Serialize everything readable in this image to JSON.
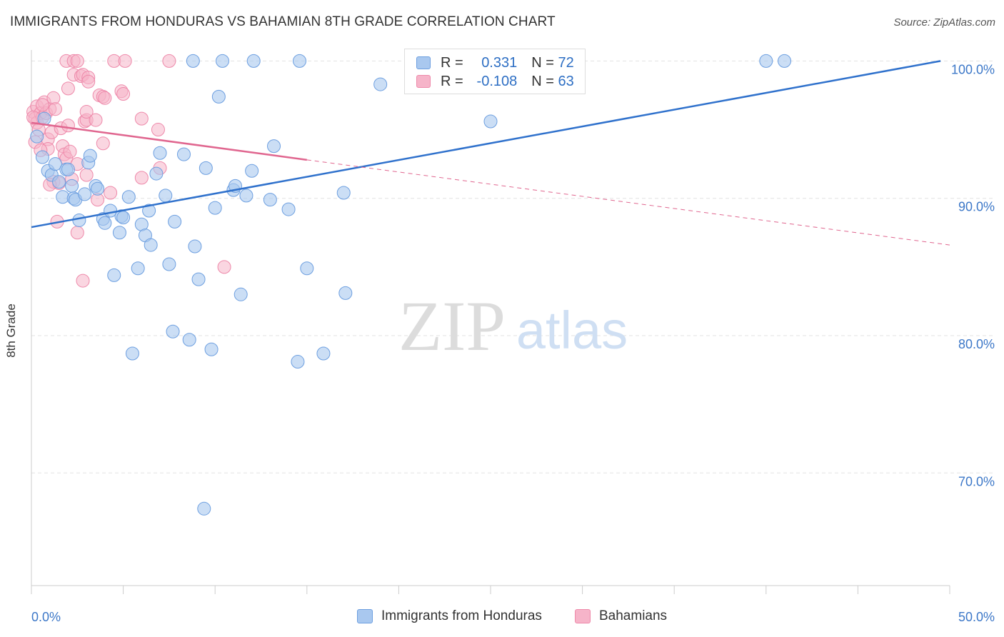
{
  "title": "IMMIGRANTS FROM HONDURAS VS BAHAMIAN 8TH GRADE CORRELATION CHART",
  "source": "Source: ZipAtlas.com",
  "watermark": {
    "zip": "ZIP",
    "atlas": "atlas"
  },
  "legend_top": [
    {
      "r_label": "R = ",
      "r_value": "0.331",
      "n_label": "N = ",
      "n_value": "72"
    },
    {
      "r_label": "R = ",
      "r_value": "-0.108",
      "n_label": "N = ",
      "n_value": "63"
    }
  ],
  "legend_bottom": [
    {
      "label": "Immigrants from Honduras"
    },
    {
      "label": "Bahamians"
    }
  ],
  "colors": {
    "blue_fill": "#a9c8ef",
    "blue_stroke": "#6d9fe0",
    "blue_line": "#2f71cc",
    "pink_fill": "#f6b4c9",
    "pink_stroke": "#ee89aa",
    "pink_line": "#e0668f",
    "tick_label": "#3d78c8",
    "grid": "#e2e2e2"
  },
  "chart_data": {
    "type": "scatter",
    "title": "IMMIGRANTS FROM HONDURAS VS BAHAMIAN 8TH GRADE CORRELATION CHART",
    "xlabel": "",
    "ylabel": "8th Grade",
    "xlim": [
      0,
      50
    ],
    "ylim": [
      61.8,
      100.8
    ],
    "x_tick_labels": [
      "0.0%",
      "50.0%"
    ],
    "y_ticks": [
      70,
      80,
      90,
      100
    ],
    "y_tick_labels": [
      "70.0%",
      "80.0%",
      "90.0%",
      "100.0%"
    ],
    "grid": true,
    "legend": "bottom",
    "series": [
      {
        "name": "Immigrants from Honduras",
        "color": "#a9c8ef",
        "r": 0.331,
        "n": 72,
        "trend": {
          "x": [
            0,
            49.5
          ],
          "y": [
            87.9,
            100.0
          ]
        },
        "points": [
          [
            0.3,
            94.5
          ],
          [
            0.6,
            93.0
          ],
          [
            0.7,
            95.8
          ],
          [
            0.9,
            92.0
          ],
          [
            1.1,
            91.7
          ],
          [
            1.3,
            92.5
          ],
          [
            1.5,
            91.2
          ],
          [
            1.7,
            90.1
          ],
          [
            1.9,
            92.1
          ],
          [
            2.0,
            92.1
          ],
          [
            2.2,
            90.9
          ],
          [
            2.3,
            90.0
          ],
          [
            2.4,
            89.9
          ],
          [
            2.6,
            88.4
          ],
          [
            2.9,
            90.3
          ],
          [
            3.1,
            92.6
          ],
          [
            3.2,
            93.1
          ],
          [
            3.5,
            90.9
          ],
          [
            3.6,
            90.7
          ],
          [
            3.9,
            88.5
          ],
          [
            4.0,
            88.2
          ],
          [
            4.3,
            89.1
          ],
          [
            4.5,
            84.4
          ],
          [
            4.8,
            87.5
          ],
          [
            4.9,
            88.7
          ],
          [
            5.0,
            88.6
          ],
          [
            5.3,
            90.1
          ],
          [
            5.5,
            78.7
          ],
          [
            5.8,
            84.9
          ],
          [
            6.0,
            88.1
          ],
          [
            6.2,
            87.3
          ],
          [
            6.4,
            89.1
          ],
          [
            6.5,
            86.6
          ],
          [
            6.8,
            91.8
          ],
          [
            7.0,
            93.3
          ],
          [
            7.3,
            90.2
          ],
          [
            7.5,
            85.2
          ],
          [
            7.7,
            80.3
          ],
          [
            7.8,
            88.3
          ],
          [
            8.3,
            93.2
          ],
          [
            8.6,
            79.7
          ],
          [
            8.8,
            100.0
          ],
          [
            8.9,
            86.5
          ],
          [
            9.1,
            84.1
          ],
          [
            9.4,
            67.4
          ],
          [
            9.5,
            92.2
          ],
          [
            9.8,
            79.0
          ],
          [
            10.0,
            89.3
          ],
          [
            10.2,
            97.4
          ],
          [
            10.4,
            100.0
          ],
          [
            11.0,
            90.6
          ],
          [
            11.1,
            90.9
          ],
          [
            11.4,
            83.0
          ],
          [
            11.7,
            90.2
          ],
          [
            12.0,
            92.0
          ],
          [
            12.1,
            100.0
          ],
          [
            13.0,
            89.9
          ],
          [
            13.2,
            93.8
          ],
          [
            14.0,
            89.2
          ],
          [
            14.5,
            78.1
          ],
          [
            14.6,
            100.0
          ],
          [
            15.0,
            84.9
          ],
          [
            15.9,
            78.7
          ],
          [
            17.0,
            90.4
          ],
          [
            17.1,
            83.1
          ],
          [
            19.0,
            98.3
          ],
          [
            23.5,
            100.0
          ],
          [
            24.0,
            100.0
          ],
          [
            25.0,
            95.6
          ],
          [
            27.5,
            100.0
          ],
          [
            40.0,
            100.0
          ],
          [
            41.0,
            100.0
          ]
        ]
      },
      {
        "name": "Bahamians",
        "color": "#f6b4c9",
        "r": -0.108,
        "n": 63,
        "trend": {
          "x": [
            0,
            15
          ],
          "y": [
            95.5,
            92.8
          ]
        },
        "trend_dashed": {
          "x": [
            15,
            50
          ],
          "y": [
            92.8,
            86.6
          ]
        },
        "points": [
          [
            0.1,
            96.3
          ],
          [
            0.2,
            95.8
          ],
          [
            0.3,
            95.5
          ],
          [
            0.3,
            96.7
          ],
          [
            0.4,
            95.0
          ],
          [
            0.5,
            96.2
          ],
          [
            0.6,
            95.9
          ],
          [
            0.7,
            97.0
          ],
          [
            0.8,
            96.2
          ],
          [
            0.9,
            94.3
          ],
          [
            0.9,
            93.6
          ],
          [
            1.0,
            96.5
          ],
          [
            1.1,
            94.8
          ],
          [
            1.2,
            91.2
          ],
          [
            1.2,
            97.3
          ],
          [
            1.3,
            96.5
          ],
          [
            1.4,
            88.3
          ],
          [
            1.5,
            91.1
          ],
          [
            1.6,
            95.1
          ],
          [
            1.7,
            93.8
          ],
          [
            1.8,
            93.2
          ],
          [
            1.9,
            100.0
          ],
          [
            1.9,
            92.9
          ],
          [
            2.0,
            95.3
          ],
          [
            2.0,
            98.0
          ],
          [
            2.1,
            93.4
          ],
          [
            2.2,
            91.4
          ],
          [
            2.3,
            100.0
          ],
          [
            2.3,
            99.0
          ],
          [
            2.5,
            100.0
          ],
          [
            2.5,
            92.5
          ],
          [
            2.5,
            87.5
          ],
          [
            2.7,
            98.9
          ],
          [
            2.8,
            99.0
          ],
          [
            2.8,
            84.0
          ],
          [
            2.9,
            95.6
          ],
          [
            3.0,
            95.7
          ],
          [
            3.0,
            91.7
          ],
          [
            3.0,
            96.3
          ],
          [
            3.1,
            98.8
          ],
          [
            3.1,
            98.5
          ],
          [
            3.5,
            95.7
          ],
          [
            3.6,
            89.9
          ],
          [
            3.7,
            97.5
          ],
          [
            3.9,
            97.4
          ],
          [
            3.9,
            94.0
          ],
          [
            4.0,
            97.3
          ],
          [
            4.3,
            90.4
          ],
          [
            4.5,
            100.0
          ],
          [
            4.9,
            97.8
          ],
          [
            5.0,
            97.6
          ],
          [
            5.1,
            100.0
          ],
          [
            6.0,
            91.5
          ],
          [
            6.0,
            95.8
          ],
          [
            6.9,
            95.0
          ],
          [
            7.0,
            92.2
          ],
          [
            7.5,
            100.0
          ],
          [
            10.5,
            85.0
          ],
          [
            0.1,
            95.9
          ],
          [
            0.2,
            94.1
          ],
          [
            0.6,
            96.8
          ],
          [
            0.5,
            93.5
          ],
          [
            1.0,
            91.0
          ]
        ]
      }
    ]
  }
}
